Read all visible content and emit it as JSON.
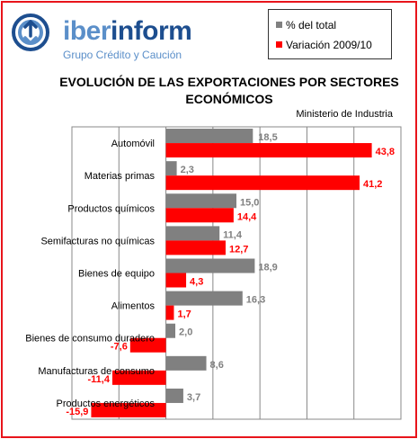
{
  "brand": {
    "name_part1": "iber",
    "name_part2": "inform",
    "tagline": "Grupo Crédito y Caución"
  },
  "colors": {
    "share": "#808080",
    "change": "#ff0000",
    "frame": "#e8141b",
    "brand_light": "#5b8fc9",
    "brand_dark": "#1d4e8f"
  },
  "chart_data": {
    "type": "bar",
    "orientation": "horizontal",
    "title": "EVOLUCIÓN DE LAS EXPORTACIONES POR SECTORES ECONÓMICOS",
    "subtitle": "Ministerio de Industria",
    "categories": [
      "Automóvil",
      "Materias primas",
      "Productos químicos",
      "Semifacturas no químicas",
      "Bienes de equipo",
      "Alimentos",
      "Bienes de consumo duradero",
      "Manufacturas  de consumo",
      "Productos energéticos"
    ],
    "series": [
      {
        "name": "% del total",
        "values": [
          18.5,
          2.3,
          15.0,
          11.4,
          18.9,
          16.3,
          2.0,
          8.6,
          3.7
        ]
      },
      {
        "name": "Variación 2009/10",
        "values": [
          43.8,
          41.2,
          14.4,
          12.7,
          4.3,
          1.7,
          -7.6,
          -11.4,
          -15.9
        ]
      }
    ],
    "value_labels": [
      [
        "18,5",
        "2,3",
        "15,0",
        "11,4",
        "18,9",
        "16,3",
        "2,0",
        "8,6",
        "3,7"
      ],
      [
        "43,8",
        "41,2",
        "14,4",
        "12,7",
        "4,3",
        "1,7",
        "-7,6",
        "-11,4",
        "-15,9"
      ]
    ],
    "xlim": [
      -20,
      50
    ],
    "grid": true,
    "legend_position": "top-right"
  }
}
